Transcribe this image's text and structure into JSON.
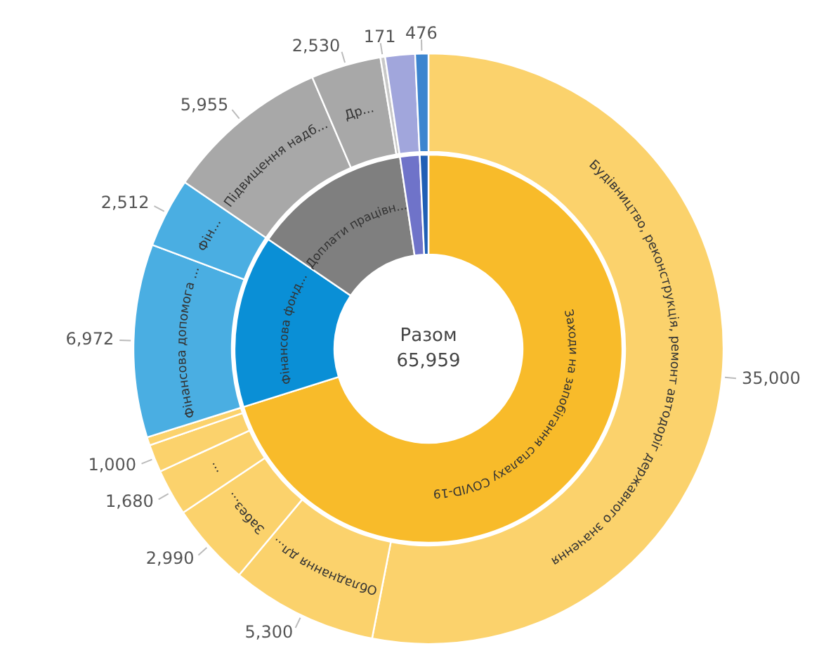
{
  "chart_data": [
    {
      "type": "donut",
      "categories": [
        "Заходи на запобігання спалаху COVID-19",
        "Фінансова фонд...",
        "Доплати працівн...",
        null,
        null
      ],
      "values": [
        70.15,
        14.38,
        13.12,
        1.63,
        0.72
      ],
      "colors": [
        "#f8bb2a",
        "#0a8fd6",
        "#7f7f7f",
        "#6f73c9",
        "#1f5fb5"
      ],
      "annotations": [
        "Разом",
        "65,959"
      ]
    },
    {
      "type": "donut",
      "categories": [
        "Будівництво, реконструкція, ремонт автодоріг державного значення",
        "Обладнання дл...",
        "Забез...",
        "...",
        null,
        null,
        "Фінансова допомога ...",
        "Фін...",
        "Підвищення надб...",
        "Др...",
        null,
        null,
        null
      ],
      "values": [
        35000,
        5300,
        2990,
        1680,
        1000,
        300,
        6972,
        2512,
        5955,
        2530,
        171,
        1073,
        476
      ],
      "colors": [
        "#fbd26c",
        "#fbd26c",
        "#fbd26c",
        "#fbd26c",
        "#fbd26c",
        "#fbd26c",
        "#4aaee2",
        "#4aaee2",
        "#a8a8a8",
        "#a8a8a8",
        "#c8c8c8",
        "#a1a6dc",
        "#3d85cf"
      ],
      "value_labels": [
        "35,000",
        "5,300",
        "2,990",
        "1,680",
        "1,000",
        null,
        "6,972",
        "2,512",
        "5,955",
        "2,530",
        "171",
        null,
        "476"
      ]
    }
  ]
}
